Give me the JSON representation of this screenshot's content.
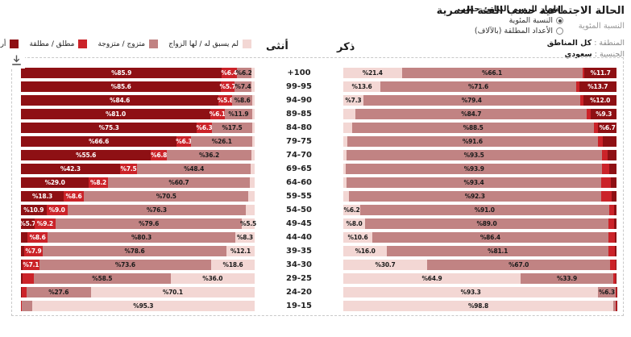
{
  "header": {
    "title": "الحالة الاجتماعية حسب الفئة العمرية",
    "subtitle": "النسبة المئوية",
    "filters": [
      {
        "label": "المنطقة :",
        "value": "كل المناطق"
      },
      {
        "label": "الجنسية :",
        "value": "سعودي"
      }
    ],
    "display_options": {
      "title": "إظهار الرسم البياني حسب",
      "options": [
        {
          "label": "النسبة المئوية",
          "selected": true
        },
        {
          "label": "الأعداد المطلقة (بالآلاف)",
          "selected": false
        }
      ]
    }
  },
  "genders": {
    "female_label": "أنثى",
    "male_label": "ذكر"
  },
  "icons": {
    "download": "download-icon"
  },
  "chart_data": {
    "type": "bar",
    "variant": "stacked horizontal population pyramid",
    "title": "الحالة الاجتماعية حسب الفئة العمرية",
    "unit": "percent",
    "xlim": [
      0,
      100
    ],
    "value_label_format": "%{value}",
    "legend_position": "top-left",
    "categories": [
      "+100",
      "99-95",
      "94-90",
      "89-85",
      "84-80",
      "79-75",
      "74-70",
      "69-65",
      "64-60",
      "59-55",
      "54-50",
      "49-45",
      "44-40",
      "39-35",
      "34-30",
      "29-25",
      "24-20",
      "19-15"
    ],
    "series": [
      {
        "key": "never_married",
        "name": "لم يسبق له / لها الزواج",
        "color": "#f3d7d4",
        "label_color": "#1a1a1a"
      },
      {
        "key": "married",
        "name": "متزوج / متزوجة",
        "color": "#c18383",
        "label_color": "#1a1a1a"
      },
      {
        "key": "divorced",
        "name": "مطلق / مطلقة",
        "color": "#cb2329",
        "label_color": "#ffffff"
      },
      {
        "key": "widowed",
        "name": "أرمل / أرملة",
        "color": "#8e1014",
        "label_color": "#ffffff"
      }
    ],
    "series_value_order": [
      "never_married",
      "married",
      "divorced",
      "widowed"
    ],
    "female": [
      {
        "values": [
          1.5,
          6.2,
          6.4,
          85.9
        ],
        "labeled": [
          false,
          true,
          true,
          true
        ]
      },
      {
        "values": [
          1.3,
          7.4,
          5.7,
          85.6
        ],
        "labeled": [
          false,
          true,
          true,
          true
        ]
      },
      {
        "values": [
          1.0,
          8.6,
          5.8,
          84.6
        ],
        "labeled": [
          false,
          true,
          true,
          true
        ]
      },
      {
        "values": [
          1.0,
          11.9,
          6.1,
          81.0
        ],
        "labeled": [
          false,
          true,
          true,
          true
        ]
      },
      {
        "values": [
          0.9,
          17.5,
          6.3,
          75.3
        ],
        "labeled": [
          false,
          true,
          true,
          true
        ]
      },
      {
        "values": [
          1.0,
          26.1,
          6.3,
          66.6
        ],
        "labeled": [
          false,
          true,
          true,
          true
        ]
      },
      {
        "values": [
          1.4,
          36.2,
          6.8,
          55.6
        ],
        "labeled": [
          false,
          true,
          true,
          true
        ]
      },
      {
        "values": [
          1.8,
          48.4,
          7.5,
          42.3
        ],
        "labeled": [
          false,
          true,
          true,
          true
        ]
      },
      {
        "values": [
          2.1,
          60.7,
          8.2,
          29.0
        ],
        "labeled": [
          false,
          true,
          true,
          true
        ]
      },
      {
        "values": [
          2.6,
          70.5,
          8.6,
          18.3
        ],
        "labeled": [
          false,
          true,
          true,
          true
        ]
      },
      {
        "values": [
          3.8,
          76.3,
          9.0,
          10.9
        ],
        "labeled": [
          false,
          true,
          true,
          true
        ]
      },
      {
        "values": [
          5.5,
          79.6,
          9.2,
          5.7
        ],
        "labeled": [
          true,
          true,
          true,
          true
        ]
      },
      {
        "values": [
          8.3,
          80.3,
          8.6,
          2.8
        ],
        "labeled": [
          true,
          true,
          true,
          false
        ]
      },
      {
        "values": [
          12.1,
          78.6,
          7.9,
          1.4
        ],
        "labeled": [
          true,
          true,
          true,
          false
        ]
      },
      {
        "values": [
          18.6,
          73.6,
          7.1,
          0.7
        ],
        "labeled": [
          true,
          true,
          true,
          false
        ]
      },
      {
        "values": [
          36.0,
          58.5,
          4.9,
          0.6
        ],
        "labeled": [
          true,
          true,
          false,
          false
        ]
      },
      {
        "values": [
          70.1,
          27.6,
          2.0,
          0.3
        ],
        "labeled": [
          true,
          true,
          false,
          false
        ]
      },
      {
        "values": [
          95.3,
          4.4,
          0.2,
          0.1
        ],
        "labeled": [
          true,
          false,
          false,
          false
        ]
      }
    ],
    "male": [
      {
        "values": [
          21.4,
          66.1,
          0.8,
          11.7
        ],
        "labeled": [
          true,
          true,
          false,
          true
        ]
      },
      {
        "values": [
          13.6,
          71.6,
          1.1,
          13.7
        ],
        "labeled": [
          true,
          true,
          false,
          true
        ]
      },
      {
        "values": [
          7.3,
          79.4,
          1.3,
          12.0
        ],
        "labeled": [
          true,
          true,
          false,
          true
        ]
      },
      {
        "values": [
          4.5,
          84.7,
          1.5,
          9.3
        ],
        "labeled": [
          false,
          true,
          false,
          true
        ]
      },
      {
        "values": [
          3.3,
          88.5,
          1.5,
          6.7
        ],
        "labeled": [
          false,
          true,
          false,
          true
        ]
      },
      {
        "values": [
          1.5,
          91.6,
          2.0,
          4.9
        ],
        "labeled": [
          false,
          true,
          false,
          false
        ]
      },
      {
        "values": [
          1.1,
          93.5,
          2.2,
          3.2
        ],
        "labeled": [
          false,
          true,
          false,
          false
        ]
      },
      {
        "values": [
          0.9,
          93.9,
          2.6,
          2.6
        ],
        "labeled": [
          false,
          true,
          false,
          false
        ]
      },
      {
        "values": [
          1.1,
          93.4,
          3.3,
          2.2
        ],
        "labeled": [
          false,
          true,
          false,
          false
        ]
      },
      {
        "values": [
          2.0,
          92.3,
          3.9,
          1.8
        ],
        "labeled": [
          false,
          true,
          false,
          false
        ]
      },
      {
        "values": [
          6.2,
          91.0,
          1.9,
          0.9
        ],
        "labeled": [
          true,
          true,
          false,
          false
        ]
      },
      {
        "values": [
          8.0,
          89.0,
          2.2,
          0.8
        ],
        "labeled": [
          true,
          true,
          false,
          false
        ]
      },
      {
        "values": [
          10.6,
          86.4,
          2.3,
          0.7
        ],
        "labeled": [
          true,
          true,
          false,
          false
        ]
      },
      {
        "values": [
          16.0,
          81.1,
          2.4,
          0.5
        ],
        "labeled": [
          true,
          true,
          false,
          false
        ]
      },
      {
        "values": [
          30.7,
          67.0,
          2.0,
          0.3
        ],
        "labeled": [
          true,
          true,
          false,
          false
        ]
      },
      {
        "values": [
          64.9,
          33.9,
          1.0,
          0.2
        ],
        "labeled": [
          true,
          true,
          false,
          false
        ]
      },
      {
        "values": [
          93.3,
          6.3,
          0.3,
          0.1
        ],
        "labeled": [
          true,
          true,
          false,
          false
        ]
      },
      {
        "values": [
          98.8,
          1.0,
          0.1,
          0.1
        ],
        "labeled": [
          true,
          false,
          false,
          false
        ]
      }
    ]
  }
}
